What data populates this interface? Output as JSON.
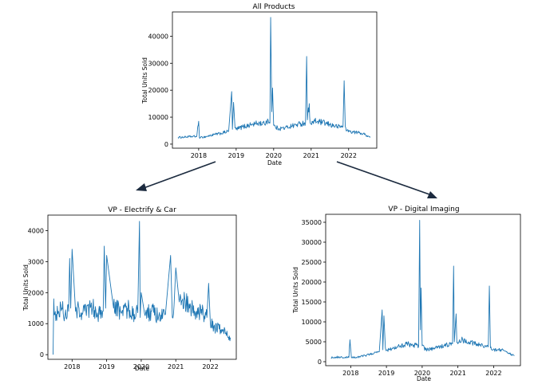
{
  "chart_data": [
    {
      "id": "all",
      "type": "line",
      "title": "All Products",
      "xlabel": "Date",
      "ylabel": "Total Units Sold",
      "xlim": [
        2017.3,
        2022.75
      ],
      "ylim": [
        -1500,
        49000
      ],
      "xticks": [
        2018,
        2019,
        2020,
        2021,
        2022
      ],
      "xtick_labels": [
        "2018",
        "2019",
        "2020",
        "2021",
        "2022"
      ],
      "yticks": [
        0,
        10000,
        20000,
        30000,
        40000
      ],
      "ytick_labels": [
        "0",
        "10000",
        "20000",
        "30000",
        "40000"
      ],
      "color": "#1f77b4",
      "grid": false,
      "series": [
        {
          "x": [
            2017.45,
            2017.6,
            2017.8,
            2017.95,
            2018.0,
            2018.02,
            2018.04,
            2018.2,
            2018.4,
            2018.6,
            2018.8,
            2018.88,
            2018.9,
            2018.93,
            2018.97,
            2019.0,
            2019.2,
            2019.4,
            2019.6,
            2019.75,
            2019.85,
            2019.9,
            2019.92,
            2019.95,
            2019.97,
            2020.0,
            2020.05,
            2020.15,
            2020.3,
            2020.5,
            2020.7,
            2020.85,
            2020.88,
            2020.9,
            2020.95,
            2020.97,
            2021.0,
            2021.1,
            2021.3,
            2021.5,
            2021.7,
            2021.85,
            2021.88,
            2021.91,
            2021.95,
            2022.1,
            2022.3,
            2022.45,
            2022.58
          ],
          "y": [
            2500,
            2600,
            2800,
            2900,
            8500,
            2500,
            2400,
            2800,
            3500,
            4000,
            4800,
            19500,
            5500,
            15500,
            6000,
            5500,
            6500,
            7200,
            7800,
            7500,
            9000,
            7800,
            47000,
            12000,
            20800,
            7000,
            6200,
            5800,
            6000,
            6800,
            7500,
            8000,
            32500,
            9000,
            15000,
            8200,
            7500,
            8500,
            8000,
            7200,
            6500,
            6500,
            23500,
            6500,
            5000,
            4500,
            4200,
            3500,
            2500
          ]
        }
      ]
    },
    {
      "id": "electrify",
      "type": "line",
      "title": "VP - Electrify & Car",
      "xlabel": "Date",
      "ylabel": "Total Units Sold",
      "xlim": [
        2017.3,
        2022.75
      ],
      "ylim": [
        -150,
        4500
      ],
      "xticks": [
        2018,
        2019,
        2020,
        2021,
        2022
      ],
      "xtick_labels": [
        "2018",
        "2019",
        "2020",
        "2021",
        "2022"
      ],
      "yticks": [
        0,
        1000,
        2000,
        3000,
        4000
      ],
      "ytick_labels": [
        "0",
        "1000",
        "2000",
        "3000",
        "4000"
      ],
      "color": "#1f77b4",
      "grid": false,
      "series": [
        {
          "x": [
            2017.45,
            2017.47,
            2017.5,
            2017.6,
            2017.7,
            2017.8,
            2017.9,
            2017.93,
            2017.96,
            2018.0,
            2018.1,
            2018.2,
            2018.3,
            2018.4,
            2018.6,
            2018.8,
            2018.9,
            2018.93,
            2018.97,
            2019.0,
            2019.2,
            2019.4,
            2019.6,
            2019.8,
            2019.9,
            2019.95,
            2019.97,
            2020.0,
            2020.1,
            2020.3,
            2020.5,
            2020.7,
            2020.85,
            2020.9,
            2020.95,
            2021.0,
            2021.1,
            2021.2,
            2021.4,
            2021.6,
            2021.8,
            2021.9,
            2021.95,
            2022.0,
            2022.1,
            2022.3,
            2022.45,
            2022.58
          ],
          "y": [
            0,
            1800,
            1300,
            1400,
            1500,
            1300,
            1400,
            3100,
            1500,
            3400,
            1400,
            1500,
            1300,
            1400,
            1500,
            1300,
            1400,
            3500,
            1500,
            3200,
            1500,
            1400,
            1500,
            1300,
            1350,
            4300,
            1200,
            2000,
            1300,
            1400,
            1200,
            1300,
            3200,
            1200,
            1600,
            2800,
            1700,
            1800,
            1500,
            1400,
            1300,
            1200,
            2300,
            1000,
            900,
            800,
            700,
            550
          ]
        }
      ]
    },
    {
      "id": "digital",
      "type": "line",
      "title": "VP - Digital Imaging",
      "xlabel": "Date",
      "ylabel": "Total Units Sold",
      "xlim": [
        2017.3,
        2022.75
      ],
      "ylim": [
        -1000,
        37000
      ],
      "xticks": [
        2018,
        2019,
        2020,
        2021,
        2022
      ],
      "xtick_labels": [
        "2018",
        "2019",
        "2020",
        "2021",
        "2022"
      ],
      "yticks": [
        0,
        5000,
        10000,
        15000,
        20000,
        25000,
        30000,
        35000
      ],
      "ytick_labels": [
        "0",
        "5000",
        "10000",
        "15000",
        "20000",
        "25000",
        "30000",
        "35000"
      ],
      "color": "#1f77b4",
      "grid": false,
      "series": [
        {
          "x": [
            2017.45,
            2017.6,
            2017.8,
            2017.95,
            2017.98,
            2018.02,
            2018.2,
            2018.4,
            2018.6,
            2018.8,
            2018.88,
            2018.9,
            2018.93,
            2018.97,
            2019.0,
            2019.2,
            2019.4,
            2019.6,
            2019.75,
            2019.85,
            2019.9,
            2019.93,
            2019.95,
            2019.97,
            2020.0,
            2020.1,
            2020.3,
            2020.5,
            2020.7,
            2020.85,
            2020.88,
            2020.9,
            2020.95,
            2020.97,
            2021.0,
            2021.1,
            2021.3,
            2021.5,
            2021.7,
            2021.85,
            2021.88,
            2021.91,
            2021.95,
            2022.1,
            2022.3,
            2022.45,
            2022.58
          ],
          "y": [
            1000,
            1200,
            1000,
            1100,
            5500,
            1000,
            1200,
            1500,
            2000,
            2500,
            13000,
            3000,
            11500,
            3500,
            2800,
            3500,
            4000,
            4500,
            3800,
            4500,
            3800,
            35500,
            8000,
            18500,
            4000,
            3000,
            3200,
            3800,
            4200,
            4500,
            24000,
            5000,
            12000,
            4800,
            4500,
            5500,
            5000,
            4500,
            4000,
            3800,
            19000,
            3500,
            3000,
            3000,
            2800,
            2000,
            1500
          ]
        }
      ]
    }
  ]
}
